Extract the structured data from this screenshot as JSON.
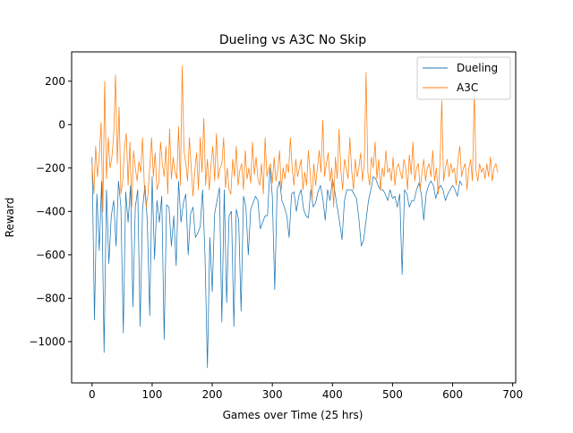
{
  "chart_data": {
    "type": "line",
    "title": "Dueling vs A3C No Skip",
    "xlabel": "Games over Time (25 hrs)",
    "ylabel": "Reward",
    "xlim": [
      -34,
      705
    ],
    "ylim": [
      -1190,
      335
    ],
    "xticks": [
      0,
      100,
      200,
      300,
      400,
      500,
      600,
      700
    ],
    "xtick_labels": [
      "0",
      "100",
      "200",
      "300",
      "400",
      "500",
      "600",
      "700"
    ],
    "yticks": [
      -1000,
      -800,
      -600,
      -400,
      -200,
      0,
      200
    ],
    "ytick_labels": [
      "−1000",
      "−800",
      "−600",
      "−400",
      "−200",
      "0",
      "200"
    ],
    "grid": false,
    "legend_position": "top-right",
    "series": [
      {
        "name": "Dueling",
        "color": "#1f77b4",
        "x_start": 0,
        "x_step": 4,
        "values": [
          -150,
          -900,
          -320,
          -580,
          -260,
          -1050,
          -300,
          -640,
          -420,
          -350,
          -560,
          -260,
          -380,
          -960,
          -310,
          -450,
          -280,
          -840,
          -380,
          -300,
          -930,
          -390,
          -280,
          -450,
          -880,
          -240,
          -620,
          -350,
          -450,
          -330,
          -990,
          -370,
          -380,
          -560,
          -420,
          -650,
          -260,
          -450,
          -360,
          -320,
          -600,
          -410,
          -380,
          -520,
          -500,
          -470,
          -300,
          -610,
          -1120,
          -520,
          -770,
          -410,
          -350,
          -290,
          -910,
          -300,
          -820,
          -420,
          -400,
          -930,
          -390,
          -440,
          -860,
          -330,
          -380,
          -600,
          -390,
          -360,
          -330,
          -350,
          -480,
          -450,
          -420,
          -420,
          -200,
          -330,
          -760,
          -300,
          -260,
          -350,
          -380,
          -420,
          -520,
          -320,
          -310,
          -400,
          -330,
          -300,
          -390,
          -420,
          -430,
          -300,
          -380,
          -360,
          -310,
          -280,
          -340,
          -440,
          -300,
          -350,
          -250,
          -310,
          -380,
          -450,
          -530,
          -350,
          -300,
          -300,
          -300,
          -320,
          -340,
          -430,
          -560,
          -530,
          -440,
          -350,
          -300,
          -240,
          -250,
          -280,
          -300,
          -300,
          -320,
          -350,
          -300,
          -340,
          -330,
          -380,
          -320,
          -690,
          -300,
          -320,
          -380,
          -350,
          -350,
          -300,
          -270,
          -320,
          -440,
          -320,
          -280,
          -260,
          -280,
          -340,
          -300,
          -280,
          -300,
          -350,
          -320,
          -300,
          -280,
          -300,
          -330,
          -260,
          -280
        ]
      },
      {
        "name": "A3C",
        "color": "#ff7f0e",
        "x_start": 0,
        "x_step": 3,
        "values": [
          -180,
          -320,
          -100,
          -240,
          -150,
          10,
          -400,
          200,
          -250,
          -60,
          -200,
          -150,
          -50,
          230,
          -180,
          80,
          -320,
          -260,
          -110,
          -40,
          -280,
          -80,
          -380,
          -120,
          -200,
          -260,
          -170,
          -220,
          -60,
          -280,
          -380,
          -320,
          -200,
          -60,
          -240,
          -130,
          -300,
          -270,
          -80,
          -180,
          -240,
          -100,
          -320,
          -20,
          -250,
          -150,
          -220,
          -250,
          -10,
          -280,
          270,
          -120,
          -180,
          -260,
          -60,
          -200,
          -330,
          -210,
          -130,
          -300,
          -60,
          -220,
          30,
          -280,
          -160,
          -300,
          -180,
          -100,
          -260,
          -40,
          -250,
          -200,
          -180,
          -60,
          -290,
          -200,
          -300,
          -320,
          -160,
          -240,
          -100,
          -280,
          -210,
          -180,
          -300,
          -120,
          -250,
          -200,
          -270,
          -80,
          -230,
          -150,
          -250,
          -280,
          -180,
          -320,
          -60,
          -240,
          -200,
          -180,
          -270,
          -150,
          -260,
          -210,
          -120,
          -300,
          -200,
          -250,
          -180,
          -220,
          -60,
          -200,
          -280,
          -160,
          -240,
          -200,
          -160,
          -300,
          -220,
          -280,
          -120,
          -220,
          -350,
          -180,
          -280,
          -200,
          -120,
          -220,
          20,
          -240,
          -180,
          -130,
          -260,
          -200,
          -380,
          -150,
          -250,
          -20,
          -210,
          -300,
          -160,
          -200,
          -250,
          -60,
          -210,
          -300,
          -160,
          -240,
          -200,
          -130,
          -260,
          -180,
          240,
          -220,
          -280,
          -150,
          -200,
          -80,
          -250,
          -160,
          -300,
          -200,
          -240,
          -120,
          -220,
          -200,
          -260,
          -150,
          -280,
          -200,
          -180,
          -220,
          -250,
          -160,
          -200,
          -300,
          -140,
          -230,
          -80,
          -260,
          -200,
          -180,
          -300,
          -220,
          -160,
          -260,
          -200,
          -180,
          -240,
          -120,
          -260,
          -200,
          -320,
          -180,
          110,
          -260,
          -200,
          -160,
          -240,
          -180,
          -220,
          -200,
          -280,
          -160,
          -100,
          -240,
          -200,
          -180,
          -300,
          -200,
          -160,
          -260,
          150,
          -210,
          -260,
          -180,
          -220,
          -200,
          -250,
          -180,
          -240,
          -150,
          -260,
          -200,
          -180,
          -220
        ]
      }
    ]
  }
}
